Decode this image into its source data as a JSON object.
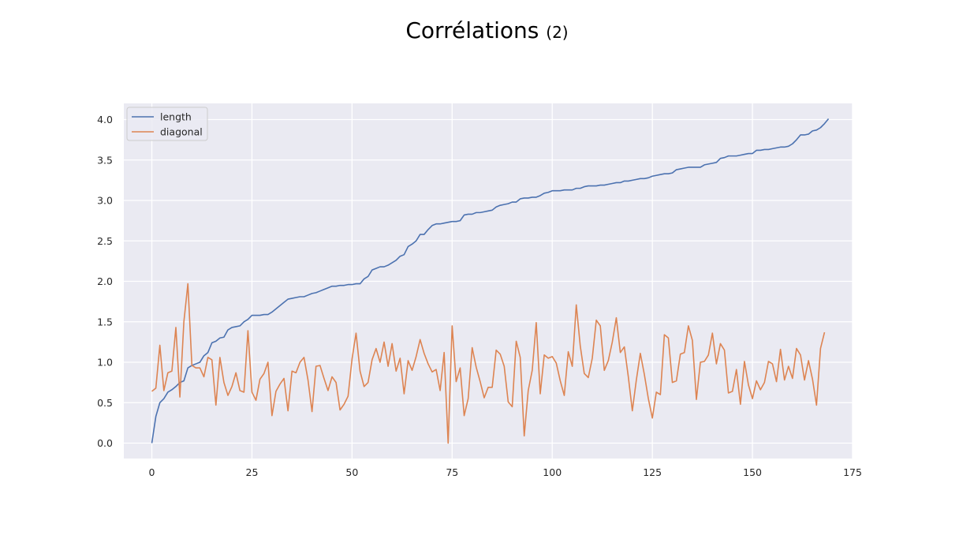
{
  "title": {
    "main": "Corrélations",
    "sub": "(2)"
  },
  "chart_data": {
    "type": "line",
    "title": "Corrélations (2)",
    "xlabel": "",
    "ylabel": "",
    "xlim": [
      -7,
      175
    ],
    "ylim": [
      -0.19,
      4.2
    ],
    "xticks": [
      0,
      25,
      50,
      75,
      100,
      125,
      150,
      175
    ],
    "yticks": [
      0.0,
      0.5,
      1.0,
      1.5,
      2.0,
      2.5,
      3.0,
      3.5,
      4.0
    ],
    "xtick_labels": [
      "0",
      "25",
      "50",
      "75",
      "100",
      "125",
      "150",
      "175"
    ],
    "ytick_labels": [
      "0.0",
      "0.5",
      "1.0",
      "1.5",
      "2.0",
      "2.5",
      "3.0",
      "3.5",
      "4.0"
    ],
    "grid": true,
    "legend": "top-left",
    "series": [
      {
        "name": "length",
        "color": "#4c72b0",
        "values": [
          0.0,
          0.33,
          0.5,
          0.55,
          0.63,
          0.66,
          0.7,
          0.75,
          0.77,
          0.93,
          0.96,
          0.98,
          1.0,
          1.08,
          1.12,
          1.24,
          1.26,
          1.3,
          1.31,
          1.4,
          1.43,
          1.44,
          1.45,
          1.5,
          1.53,
          1.58,
          1.58,
          1.58,
          1.59,
          1.59,
          1.62,
          1.66,
          1.7,
          1.74,
          1.78,
          1.79,
          1.8,
          1.81,
          1.81,
          1.83,
          1.85,
          1.86,
          1.88,
          1.9,
          1.92,
          1.94,
          1.94,
          1.95,
          1.95,
          1.96,
          1.96,
          1.97,
          1.97,
          2.03,
          2.06,
          2.14,
          2.16,
          2.18,
          2.18,
          2.2,
          2.23,
          2.26,
          2.31,
          2.33,
          2.43,
          2.46,
          2.5,
          2.58,
          2.58,
          2.64,
          2.69,
          2.71,
          2.71,
          2.72,
          2.73,
          2.74,
          2.74,
          2.75,
          2.82,
          2.83,
          2.83,
          2.85,
          2.85,
          2.86,
          2.87,
          2.88,
          2.92,
          2.94,
          2.95,
          2.96,
          2.98,
          2.98,
          3.02,
          3.03,
          3.03,
          3.04,
          3.04,
          3.06,
          3.09,
          3.1,
          3.12,
          3.12,
          3.12,
          3.13,
          3.13,
          3.13,
          3.15,
          3.15,
          3.17,
          3.18,
          3.18,
          3.18,
          3.19,
          3.19,
          3.2,
          3.21,
          3.22,
          3.22,
          3.24,
          3.24,
          3.25,
          3.26,
          3.27,
          3.27,
          3.28,
          3.3,
          3.31,
          3.32,
          3.33,
          3.33,
          3.34,
          3.38,
          3.39,
          3.4,
          3.41,
          3.41,
          3.41,
          3.41,
          3.44,
          3.45,
          3.46,
          3.47,
          3.52,
          3.53,
          3.55,
          3.55,
          3.55,
          3.56,
          3.57,
          3.58,
          3.58,
          3.62,
          3.62,
          3.63,
          3.63,
          3.64,
          3.65,
          3.66,
          3.66,
          3.67,
          3.7,
          3.75,
          3.81,
          3.81,
          3.82,
          3.86,
          3.87,
          3.9,
          3.95,
          4.01
        ]
      },
      {
        "name": "diagonal",
        "color": "#dd8452",
        "values": [
          0.64,
          0.68,
          1.21,
          0.65,
          0.87,
          0.89,
          1.43,
          0.57,
          1.5,
          1.97,
          0.96,
          0.93,
          0.93,
          0.82,
          1.06,
          1.03,
          0.47,
          1.06,
          0.75,
          0.59,
          0.7,
          0.87,
          0.65,
          0.63,
          1.39,
          0.63,
          0.53,
          0.79,
          0.86,
          1.0,
          0.34,
          0.64,
          0.73,
          0.8,
          0.4,
          0.89,
          0.87,
          1.0,
          1.06,
          0.78,
          0.39,
          0.95,
          0.96,
          0.8,
          0.65,
          0.82,
          0.75,
          0.41,
          0.48,
          0.58,
          1.04,
          1.36,
          0.89,
          0.7,
          0.75,
          1.03,
          1.17,
          1.0,
          1.25,
          0.95,
          1.23,
          0.89,
          1.05,
          0.61,
          1.02,
          0.9,
          1.07,
          1.28,
          1.11,
          0.98,
          0.88,
          0.91,
          0.65,
          1.12,
          0.0,
          1.45,
          0.76,
          0.93,
          0.34,
          0.55,
          1.18,
          0.94,
          0.76,
          0.56,
          0.69,
          0.69,
          1.15,
          1.1,
          0.95,
          0.51,
          0.45,
          1.26,
          1.06,
          0.09,
          0.65,
          0.9,
          1.49,
          0.61,
          1.09,
          1.05,
          1.07,
          0.99,
          0.77,
          0.59,
          1.13,
          0.95,
          1.71,
          1.2,
          0.86,
          0.81,
          1.05,
          1.52,
          1.45,
          0.9,
          1.02,
          1.25,
          1.55,
          1.12,
          1.19,
          0.82,
          0.4,
          0.78,
          1.11,
          0.85,
          0.55,
          0.31,
          0.63,
          0.6,
          1.34,
          1.3,
          0.75,
          0.77,
          1.1,
          1.12,
          1.45,
          1.27,
          0.54,
          1.0,
          1.01,
          1.09,
          1.36,
          0.98,
          1.23,
          1.15,
          0.62,
          0.64,
          0.91,
          0.48,
          1.01,
          0.72,
          0.55,
          0.77,
          0.66,
          0.75,
          1.01,
          0.98,
          0.76,
          1.16,
          0.78,
          0.95,
          0.8,
          1.17,
          1.09,
          0.78,
          1.02,
          0.79,
          0.47,
          1.17,
          1.37
        ]
      }
    ]
  }
}
